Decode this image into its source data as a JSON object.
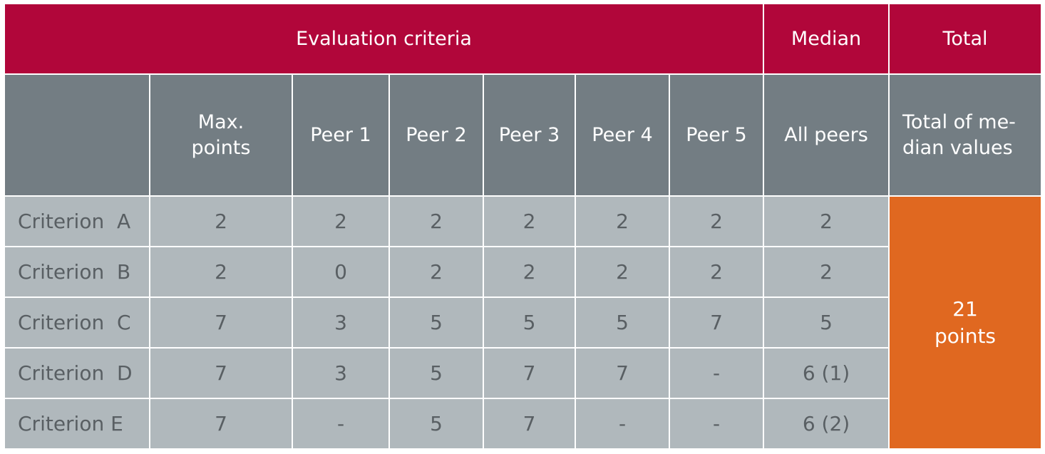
{
  "header": {
    "evaluation_criteria": "Evaluation criteria",
    "median": "Median",
    "total": "Total"
  },
  "subheader": {
    "blank": "",
    "max_points_line1": "Max.",
    "max_points_line2": "points",
    "peer1": "Peer 1",
    "peer2": "Peer 2",
    "peer3": "Peer 3",
    "peer4": "Peer 4",
    "peer5": "Peer 5",
    "all_peers": "All peers",
    "total_line1": "Total of me-",
    "total_line2": "dian values"
  },
  "rows": [
    {
      "label": "Criterion  A",
      "max": "2",
      "p1": "2",
      "p2": "2",
      "p3": "2",
      "p4": "2",
      "p5": "2",
      "median": "2"
    },
    {
      "label": "Criterion  B",
      "max": "2",
      "p1": "0",
      "p2": "2",
      "p3": "2",
      "p4": "2",
      "p5": "2",
      "median": "2"
    },
    {
      "label": "Criterion  C",
      "max": "7",
      "p1": "3",
      "p2": "5",
      "p3": "5",
      "p4": "5",
      "p5": "7",
      "median": "5"
    },
    {
      "label": "Criterion  D",
      "max": "7",
      "p1": "3",
      "p2": "5",
      "p3": "7",
      "p4": "7",
      "p5": "-",
      "median": "6 (1)"
    },
    {
      "label": "Criterion E",
      "max": "7",
      "p1": "-",
      "p2": "5",
      "p3": "7",
      "p4": "-",
      "p5": "-",
      "median": "6 (2)"
    }
  ],
  "total": {
    "value": "21",
    "unit": "points"
  },
  "colors": {
    "header_red": "#b1063a",
    "subheader_gray": "#737d83",
    "cell_gray": "#b0b8bc",
    "total_orange": "#e06820"
  }
}
